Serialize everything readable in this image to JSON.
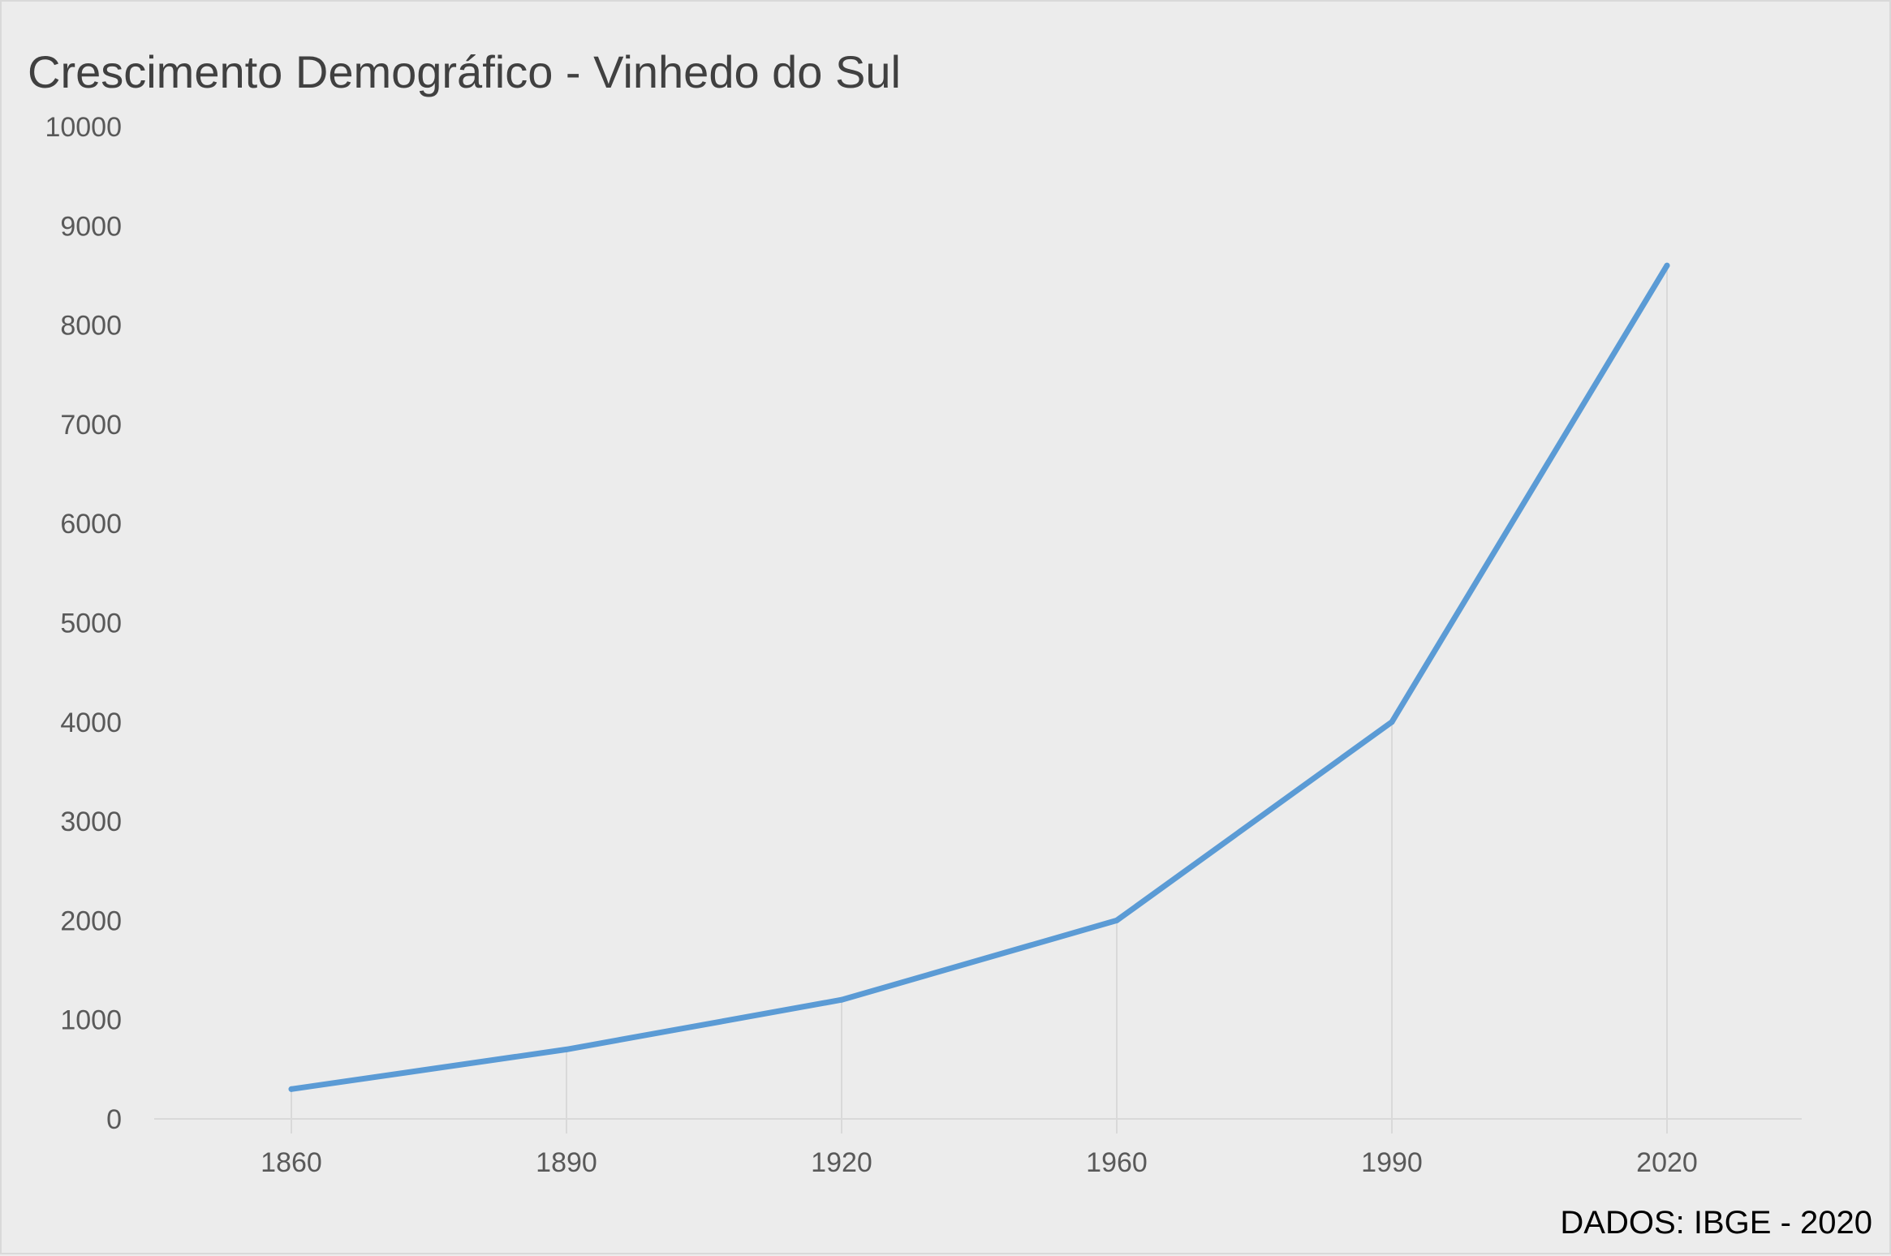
{
  "chart_data": {
    "type": "line",
    "title": "Crescimento Demográfico - Vinhedo do Sul",
    "xlabel": "",
    "ylabel": "",
    "categories": [
      "1860",
      "1890",
      "1920",
      "1960",
      "1990",
      "2020"
    ],
    "series": [
      {
        "values": [
          300,
          700,
          1200,
          2000,
          4000,
          8600
        ],
        "color": "#5b9bd5"
      }
    ],
    "ylim": [
      0,
      10000
    ],
    "yticks": [
      "0",
      "1000",
      "2000",
      "3000",
      "4000",
      "5000",
      "6000",
      "7000",
      "8000",
      "9000",
      "10000"
    ],
    "grid": "vertical drop lines at data points",
    "legend": "none",
    "source_note": "DADOS: IBGE - 2020"
  },
  "colors": {
    "background": "#ececec",
    "line": "#5b9bd5",
    "axis": "#d9d9d9",
    "text": "#595959"
  }
}
